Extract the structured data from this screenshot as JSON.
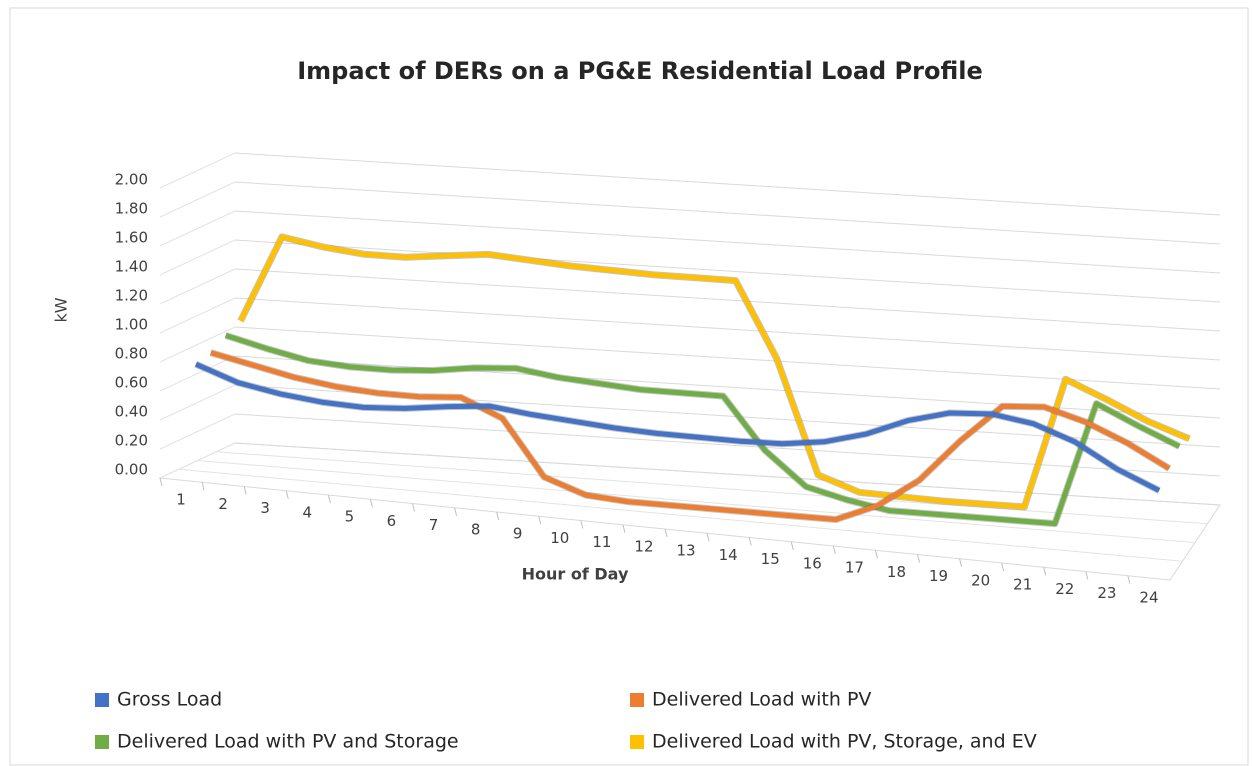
{
  "chart_data": {
    "type": "line3d",
    "title": "Impact of DERs on a PG&E Residential Load Profile",
    "x_label": "Hour of Day",
    "y_label": "kW",
    "categories": [
      "1",
      "2",
      "3",
      "4",
      "5",
      "6",
      "7",
      "8",
      "9",
      "10",
      "11",
      "12",
      "13",
      "14",
      "15",
      "16",
      "17",
      "18",
      "19",
      "20",
      "21",
      "22",
      "23",
      "24"
    ],
    "ylim": [
      0,
      2
    ],
    "yticks": [
      {
        "value": 0,
        "label": "0.00"
      },
      {
        "value": 0.2,
        "label": "0.20"
      },
      {
        "value": 0.4,
        "label": "0.40"
      },
      {
        "value": 0.6,
        "label": "0.60"
      },
      {
        "value": 0.8,
        "label": "0.80"
      },
      {
        "value": 1,
        "label": "1.00"
      },
      {
        "value": 1.2,
        "label": "1.20"
      },
      {
        "value": 1.4,
        "label": "1.40"
      },
      {
        "value": 1.6,
        "label": "1.60"
      },
      {
        "value": 1.8,
        "label": "1.80"
      },
      {
        "value": 2,
        "label": "2.00"
      }
    ],
    "grid": true,
    "series": [
      {
        "name": "Gross Load",
        "color": "#4472c4",
        "values": [
          0.75,
          0.65,
          0.6,
          0.57,
          0.56,
          0.58,
          0.62,
          0.65,
          0.62,
          0.6,
          0.58,
          0.57,
          0.57,
          0.57,
          0.58,
          0.62,
          0.7,
          0.82,
          0.9,
          0.92,
          0.88,
          0.78,
          0.62,
          0.5
        ]
      },
      {
        "name": "Delivered Load with PV",
        "color": "#ed7d31",
        "values": [
          0.78,
          0.72,
          0.66,
          0.62,
          0.6,
          0.6,
          0.62,
          0.5,
          0.12,
          0.02,
          0,
          0,
          0,
          0,
          0,
          0,
          0.12,
          0.32,
          0.62,
          0.88,
          0.9,
          0.82,
          0.7,
          0.55
        ]
      },
      {
        "name": "Delivered Load with PV and Storage",
        "color": "#70ad47",
        "values": [
          0.85,
          0.78,
          0.72,
          0.7,
          0.7,
          0.72,
          0.76,
          0.78,
          0.74,
          0.72,
          0.7,
          0.7,
          0.7,
          0.35,
          0.12,
          0.05,
          0,
          0,
          0,
          0,
          0,
          0.85,
          0.72,
          0.6
        ]
      },
      {
        "name": "Delivered Load with PV, Storage, and EV",
        "color": "#ffc000",
        "values": [
          0.9,
          1.5,
          1.45,
          1.42,
          1.42,
          1.45,
          1.48,
          1.46,
          1.44,
          1.43,
          1.42,
          1.42,
          1.42,
          0.9,
          0.12,
          0.02,
          0.01,
          0,
          0,
          0,
          0.9,
          0.78,
          0.65,
          0.55
        ]
      }
    ]
  }
}
